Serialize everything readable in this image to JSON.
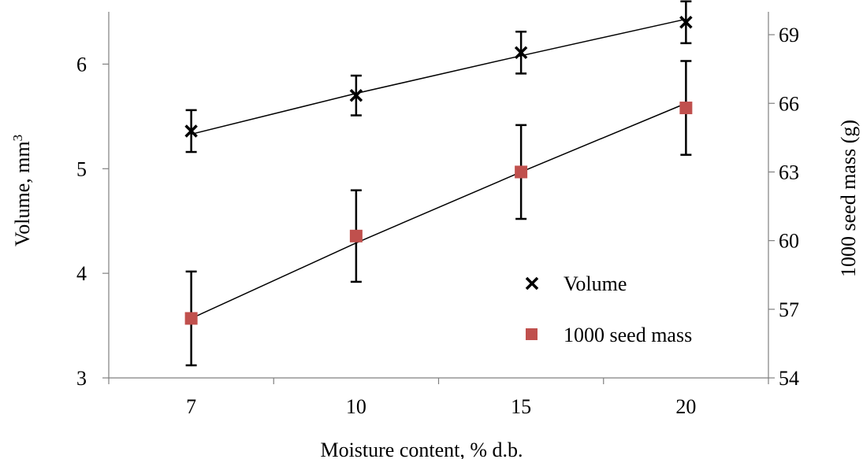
{
  "chart_data": {
    "type": "line",
    "categories": [
      "7",
      "10",
      "15",
      "20"
    ],
    "x_axis": {
      "label": "Moisture content, % d.b."
    },
    "y_axis_left": {
      "label_main": "Volume, mm",
      "label_sup": "3",
      "range": [
        3,
        6.5
      ],
      "ticks": [
        "3",
        "4",
        "5",
        "6"
      ]
    },
    "y_axis_right": {
      "label": "1000 seed mass (g)",
      "range": [
        54,
        70
      ],
      "ticks": [
        "54",
        "57",
        "60",
        "63",
        "66",
        "69"
      ]
    },
    "series": [
      {
        "name": "Volume",
        "axis": "left",
        "marker": "x",
        "color": "#000000",
        "values": [
          5.36,
          5.7,
          6.11,
          6.4
        ],
        "error": [
          0.2,
          0.19,
          0.2,
          0.2
        ],
        "trend": [
          5.33,
          5.72,
          6.08,
          6.43
        ]
      },
      {
        "name": "1000 seed mass",
        "axis": "right",
        "marker": "square",
        "color": "#c0504d",
        "values": [
          56.6,
          60.2,
          63.0,
          65.8
        ],
        "error": [
          2.05,
          2.0,
          2.05,
          2.05
        ],
        "trend": [
          56.6,
          59.9,
          63.0,
          66.0
        ]
      }
    ],
    "legend": {
      "position": "right-bottom-inside"
    },
    "grid": false
  }
}
